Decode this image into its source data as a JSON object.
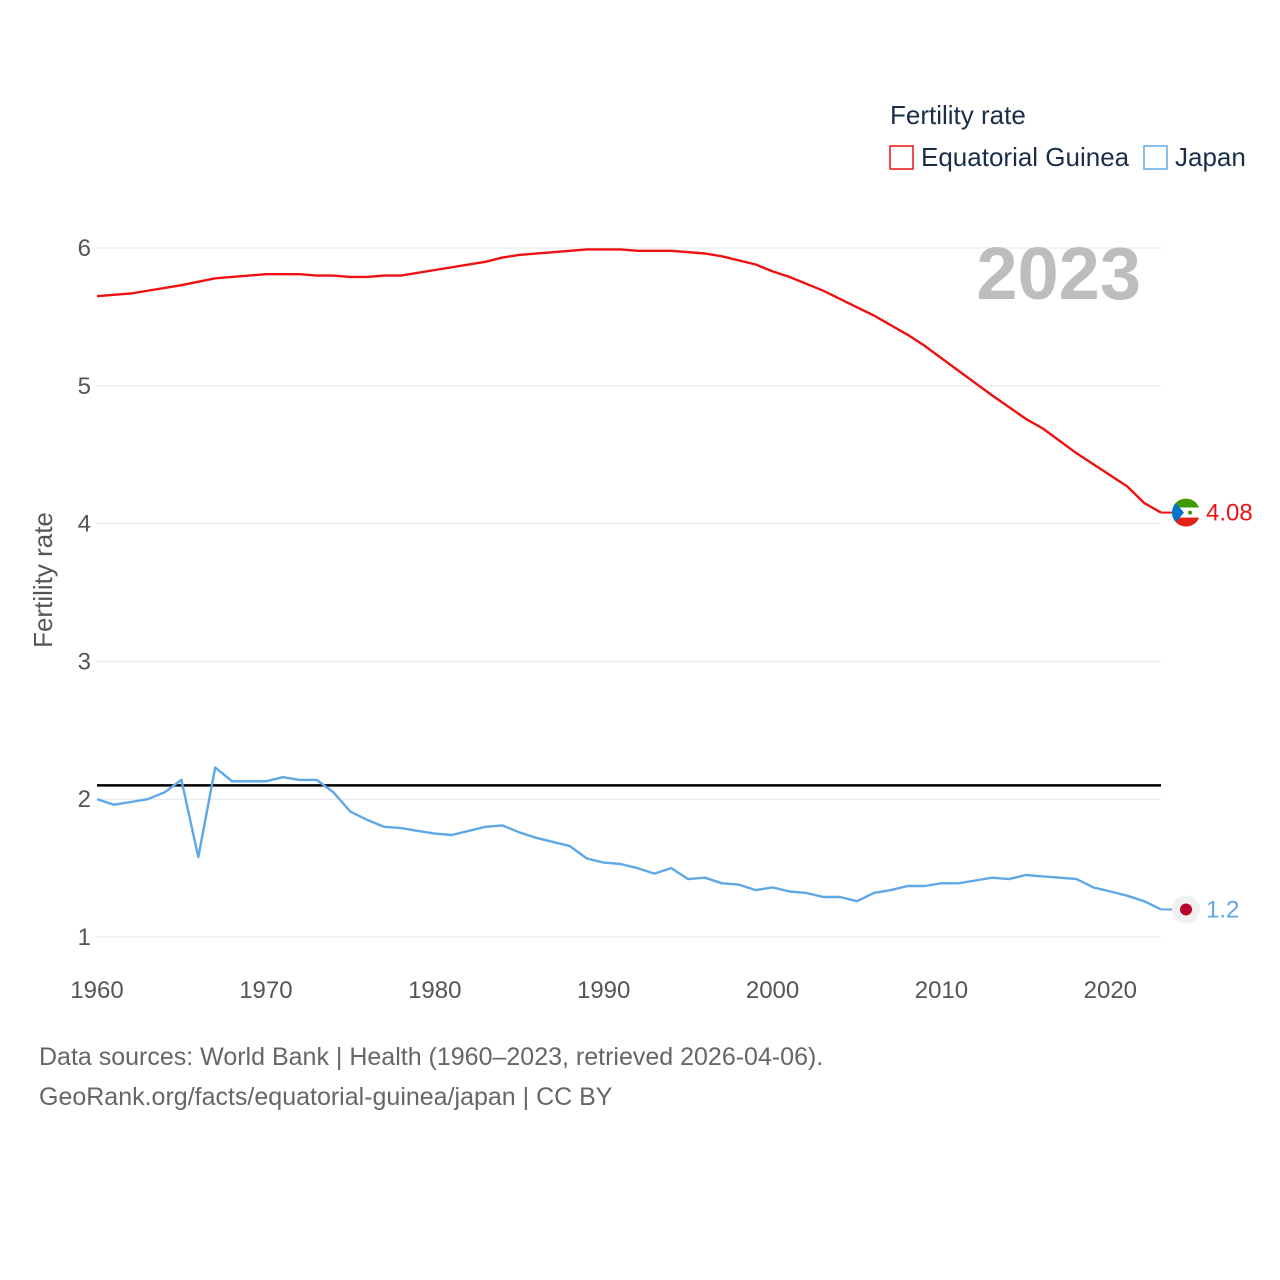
{
  "chart_data": {
    "type": "line",
    "year_stamp": "2023",
    "ylabel": "Fertility rate",
    "xlabel": "",
    "xlim": [
      1960,
      2023
    ],
    "ylim": [
      0.9,
      6.1
    ],
    "xticks": [
      1960,
      1970,
      1980,
      1990,
      2000,
      2010,
      2020
    ],
    "yticks": [
      1,
      2,
      3,
      4,
      5,
      6
    ],
    "reference_line": 2.1,
    "legend": {
      "title": "Fertility rate",
      "placement": "top-right"
    },
    "series": [
      {
        "name": "Equatorial Guinea",
        "color": "#ee1111",
        "end_label": "4.08",
        "flag_icon": "equatorial-guinea-flag-icon",
        "x": [
          1960,
          1962,
          1965,
          1967,
          1970,
          1972,
          1973,
          1974,
          1975,
          1976,
          1977,
          1978,
          1980,
          1983,
          1984,
          1985,
          1988,
          1989,
          1990,
          1991,
          1992,
          1993,
          1994,
          1996,
          1997,
          1999,
          2000,
          2001,
          2003,
          2005,
          2006,
          2008,
          2009,
          2011,
          2013,
          2015,
          2016,
          2018,
          2021,
          2022,
          2023
        ],
        "values": [
          5.65,
          5.67,
          5.73,
          5.78,
          5.81,
          5.81,
          5.8,
          5.8,
          5.79,
          5.79,
          5.8,
          5.8,
          5.84,
          5.9,
          5.93,
          5.95,
          5.98,
          5.99,
          5.99,
          5.99,
          5.98,
          5.98,
          5.98,
          5.96,
          5.94,
          5.88,
          5.83,
          5.79,
          5.69,
          5.57,
          5.51,
          5.37,
          5.29,
          5.11,
          4.93,
          4.76,
          4.69,
          4.51,
          4.27,
          4.15,
          4.08
        ]
      },
      {
        "name": "Japan",
        "color": "#5fa8e8",
        "end_label": "1.2",
        "flag_icon": "japan-flag-icon",
        "x": [
          1960,
          1961,
          1962,
          1963,
          1964,
          1965,
          1966,
          1967,
          1968,
          1969,
          1970,
          1971,
          1972,
          1973,
          1974,
          1975,
          1976,
          1977,
          1978,
          1979,
          1980,
          1981,
          1982,
          1983,
          1984,
          1985,
          1986,
          1987,
          1988,
          1989,
          1990,
          1991,
          1992,
          1993,
          1994,
          1995,
          1996,
          1997,
          1998,
          1999,
          2000,
          2001,
          2002,
          2003,
          2004,
          2005,
          2006,
          2007,
          2008,
          2009,
          2010,
          2011,
          2012,
          2013,
          2014,
          2015,
          2016,
          2017,
          2018,
          2019,
          2020,
          2021,
          2022,
          2023
        ],
        "values": [
          2.0,
          1.96,
          1.98,
          2.0,
          2.05,
          2.14,
          1.58,
          2.23,
          2.13,
          2.13,
          2.13,
          2.16,
          2.14,
          2.14,
          2.05,
          1.91,
          1.85,
          1.8,
          1.79,
          1.77,
          1.75,
          1.74,
          1.77,
          1.8,
          1.81,
          1.76,
          1.72,
          1.69,
          1.66,
          1.57,
          1.54,
          1.53,
          1.5,
          1.46,
          1.5,
          1.42,
          1.43,
          1.39,
          1.38,
          1.34,
          1.36,
          1.33,
          1.32,
          1.29,
          1.29,
          1.26,
          1.32,
          1.34,
          1.37,
          1.37,
          1.39,
          1.39,
          1.41,
          1.43,
          1.42,
          1.45,
          1.44,
          1.43,
          1.42,
          1.36,
          1.33,
          1.3,
          1.26,
          1.2
        ]
      }
    ]
  },
  "footer": {
    "line1": "Data sources: World Bank | Health (1960–2023, retrieved 2026-04-06).",
    "line2": "GeoRank.org/facts/equatorial-guinea/japan | CC BY"
  }
}
